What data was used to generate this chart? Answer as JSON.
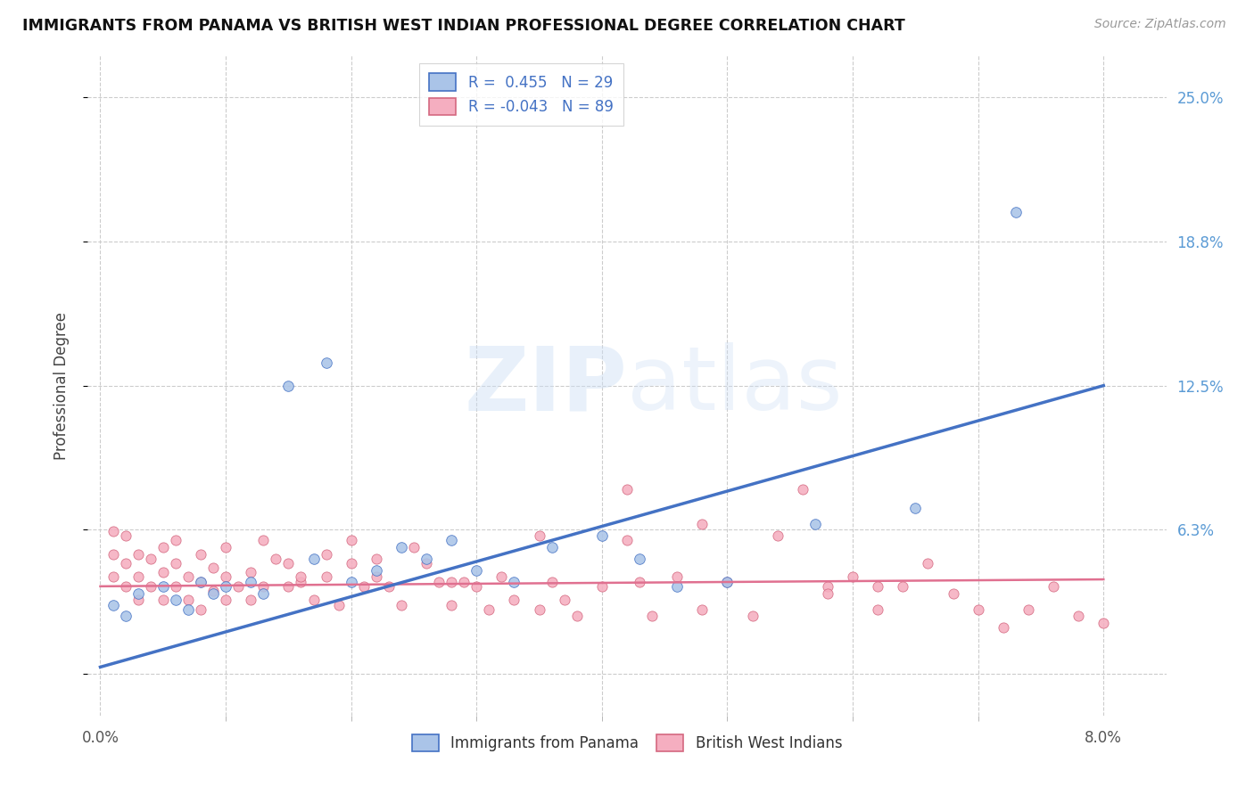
{
  "title": "IMMIGRANTS FROM PANAMA VS BRITISH WEST INDIAN PROFESSIONAL DEGREE CORRELATION CHART",
  "source": "Source: ZipAtlas.com",
  "ylabel": "Professional Degree",
  "ytick_vals": [
    0.0,
    0.0625,
    0.125,
    0.1875,
    0.25
  ],
  "ytick_labels": [
    "",
    "6.3%",
    "12.5%",
    "18.8%",
    "25.0%"
  ],
  "xtick_vals": [
    0.0,
    0.08
  ],
  "xtick_labels": [
    "0.0%",
    "8.0%"
  ],
  "xtick_minor_vals": [
    0.01,
    0.02,
    0.03,
    0.04,
    0.05,
    0.06,
    0.07
  ],
  "xlim": [
    -0.001,
    0.085
  ],
  "ylim": [
    -0.018,
    0.268
  ],
  "color_panama_face": "#aac4e8",
  "color_panama_edge": "#4472c4",
  "color_bwi_face": "#f5aec0",
  "color_bwi_edge": "#d46880",
  "color_line_panama": "#4472c4",
  "color_line_bwi": "#e07090",
  "panama_line_x0": 0.0,
  "panama_line_y0": 0.003,
  "panama_line_x1": 0.08,
  "panama_line_y1": 0.125,
  "bwi_line_x0": 0.0,
  "bwi_line_y0": 0.038,
  "bwi_line_x1": 0.08,
  "bwi_line_y1": 0.041,
  "legend_r_labels": [
    "R =  0.455   N = 29",
    "R = -0.043   N = 89"
  ],
  "legend_group_labels": [
    "Immigrants from Panama",
    "British West Indians"
  ],
  "grid_color": "#cccccc",
  "panama_x": [
    0.001,
    0.002,
    0.003,
    0.005,
    0.006,
    0.007,
    0.008,
    0.009,
    0.01,
    0.012,
    0.013,
    0.015,
    0.017,
    0.018,
    0.02,
    0.022,
    0.024,
    0.026,
    0.028,
    0.03,
    0.033,
    0.036,
    0.04,
    0.043,
    0.046,
    0.05,
    0.057,
    0.065,
    0.073
  ],
  "panama_y": [
    0.03,
    0.025,
    0.035,
    0.038,
    0.032,
    0.028,
    0.04,
    0.035,
    0.038,
    0.04,
    0.035,
    0.125,
    0.05,
    0.135,
    0.04,
    0.045,
    0.055,
    0.05,
    0.058,
    0.045,
    0.04,
    0.055,
    0.06,
    0.05,
    0.038,
    0.04,
    0.065,
    0.072,
    0.2
  ],
  "bwi_x": [
    0.001,
    0.001,
    0.001,
    0.002,
    0.002,
    0.002,
    0.003,
    0.003,
    0.003,
    0.004,
    0.004,
    0.005,
    0.005,
    0.005,
    0.006,
    0.006,
    0.006,
    0.007,
    0.007,
    0.008,
    0.008,
    0.008,
    0.009,
    0.009,
    0.01,
    0.01,
    0.01,
    0.011,
    0.012,
    0.012,
    0.013,
    0.013,
    0.014,
    0.015,
    0.015,
    0.016,
    0.017,
    0.018,
    0.018,
    0.019,
    0.02,
    0.02,
    0.021,
    0.022,
    0.023,
    0.024,
    0.025,
    0.026,
    0.027,
    0.028,
    0.029,
    0.03,
    0.031,
    0.032,
    0.033,
    0.035,
    0.036,
    0.037,
    0.038,
    0.04,
    0.042,
    0.043,
    0.044,
    0.046,
    0.048,
    0.05,
    0.052,
    0.054,
    0.056,
    0.058,
    0.06,
    0.062,
    0.064,
    0.066,
    0.068,
    0.07,
    0.072,
    0.074,
    0.076,
    0.078,
    0.08,
    0.058,
    0.062,
    0.035,
    0.042,
    0.048,
    0.028,
    0.022,
    0.016
  ],
  "bwi_y": [
    0.042,
    0.052,
    0.062,
    0.038,
    0.048,
    0.06,
    0.032,
    0.042,
    0.052,
    0.038,
    0.05,
    0.032,
    0.044,
    0.055,
    0.038,
    0.048,
    0.058,
    0.032,
    0.042,
    0.028,
    0.04,
    0.052,
    0.036,
    0.046,
    0.032,
    0.042,
    0.055,
    0.038,
    0.032,
    0.044,
    0.058,
    0.038,
    0.05,
    0.038,
    0.048,
    0.04,
    0.032,
    0.042,
    0.052,
    0.03,
    0.048,
    0.058,
    0.038,
    0.042,
    0.038,
    0.03,
    0.055,
    0.048,
    0.04,
    0.03,
    0.04,
    0.038,
    0.028,
    0.042,
    0.032,
    0.028,
    0.04,
    0.032,
    0.025,
    0.038,
    0.058,
    0.04,
    0.025,
    0.042,
    0.028,
    0.04,
    0.025,
    0.06,
    0.08,
    0.038,
    0.042,
    0.028,
    0.038,
    0.048,
    0.035,
    0.028,
    0.02,
    0.028,
    0.038,
    0.025,
    0.022,
    0.035,
    0.038,
    0.06,
    0.08,
    0.065,
    0.04,
    0.05,
    0.042
  ]
}
